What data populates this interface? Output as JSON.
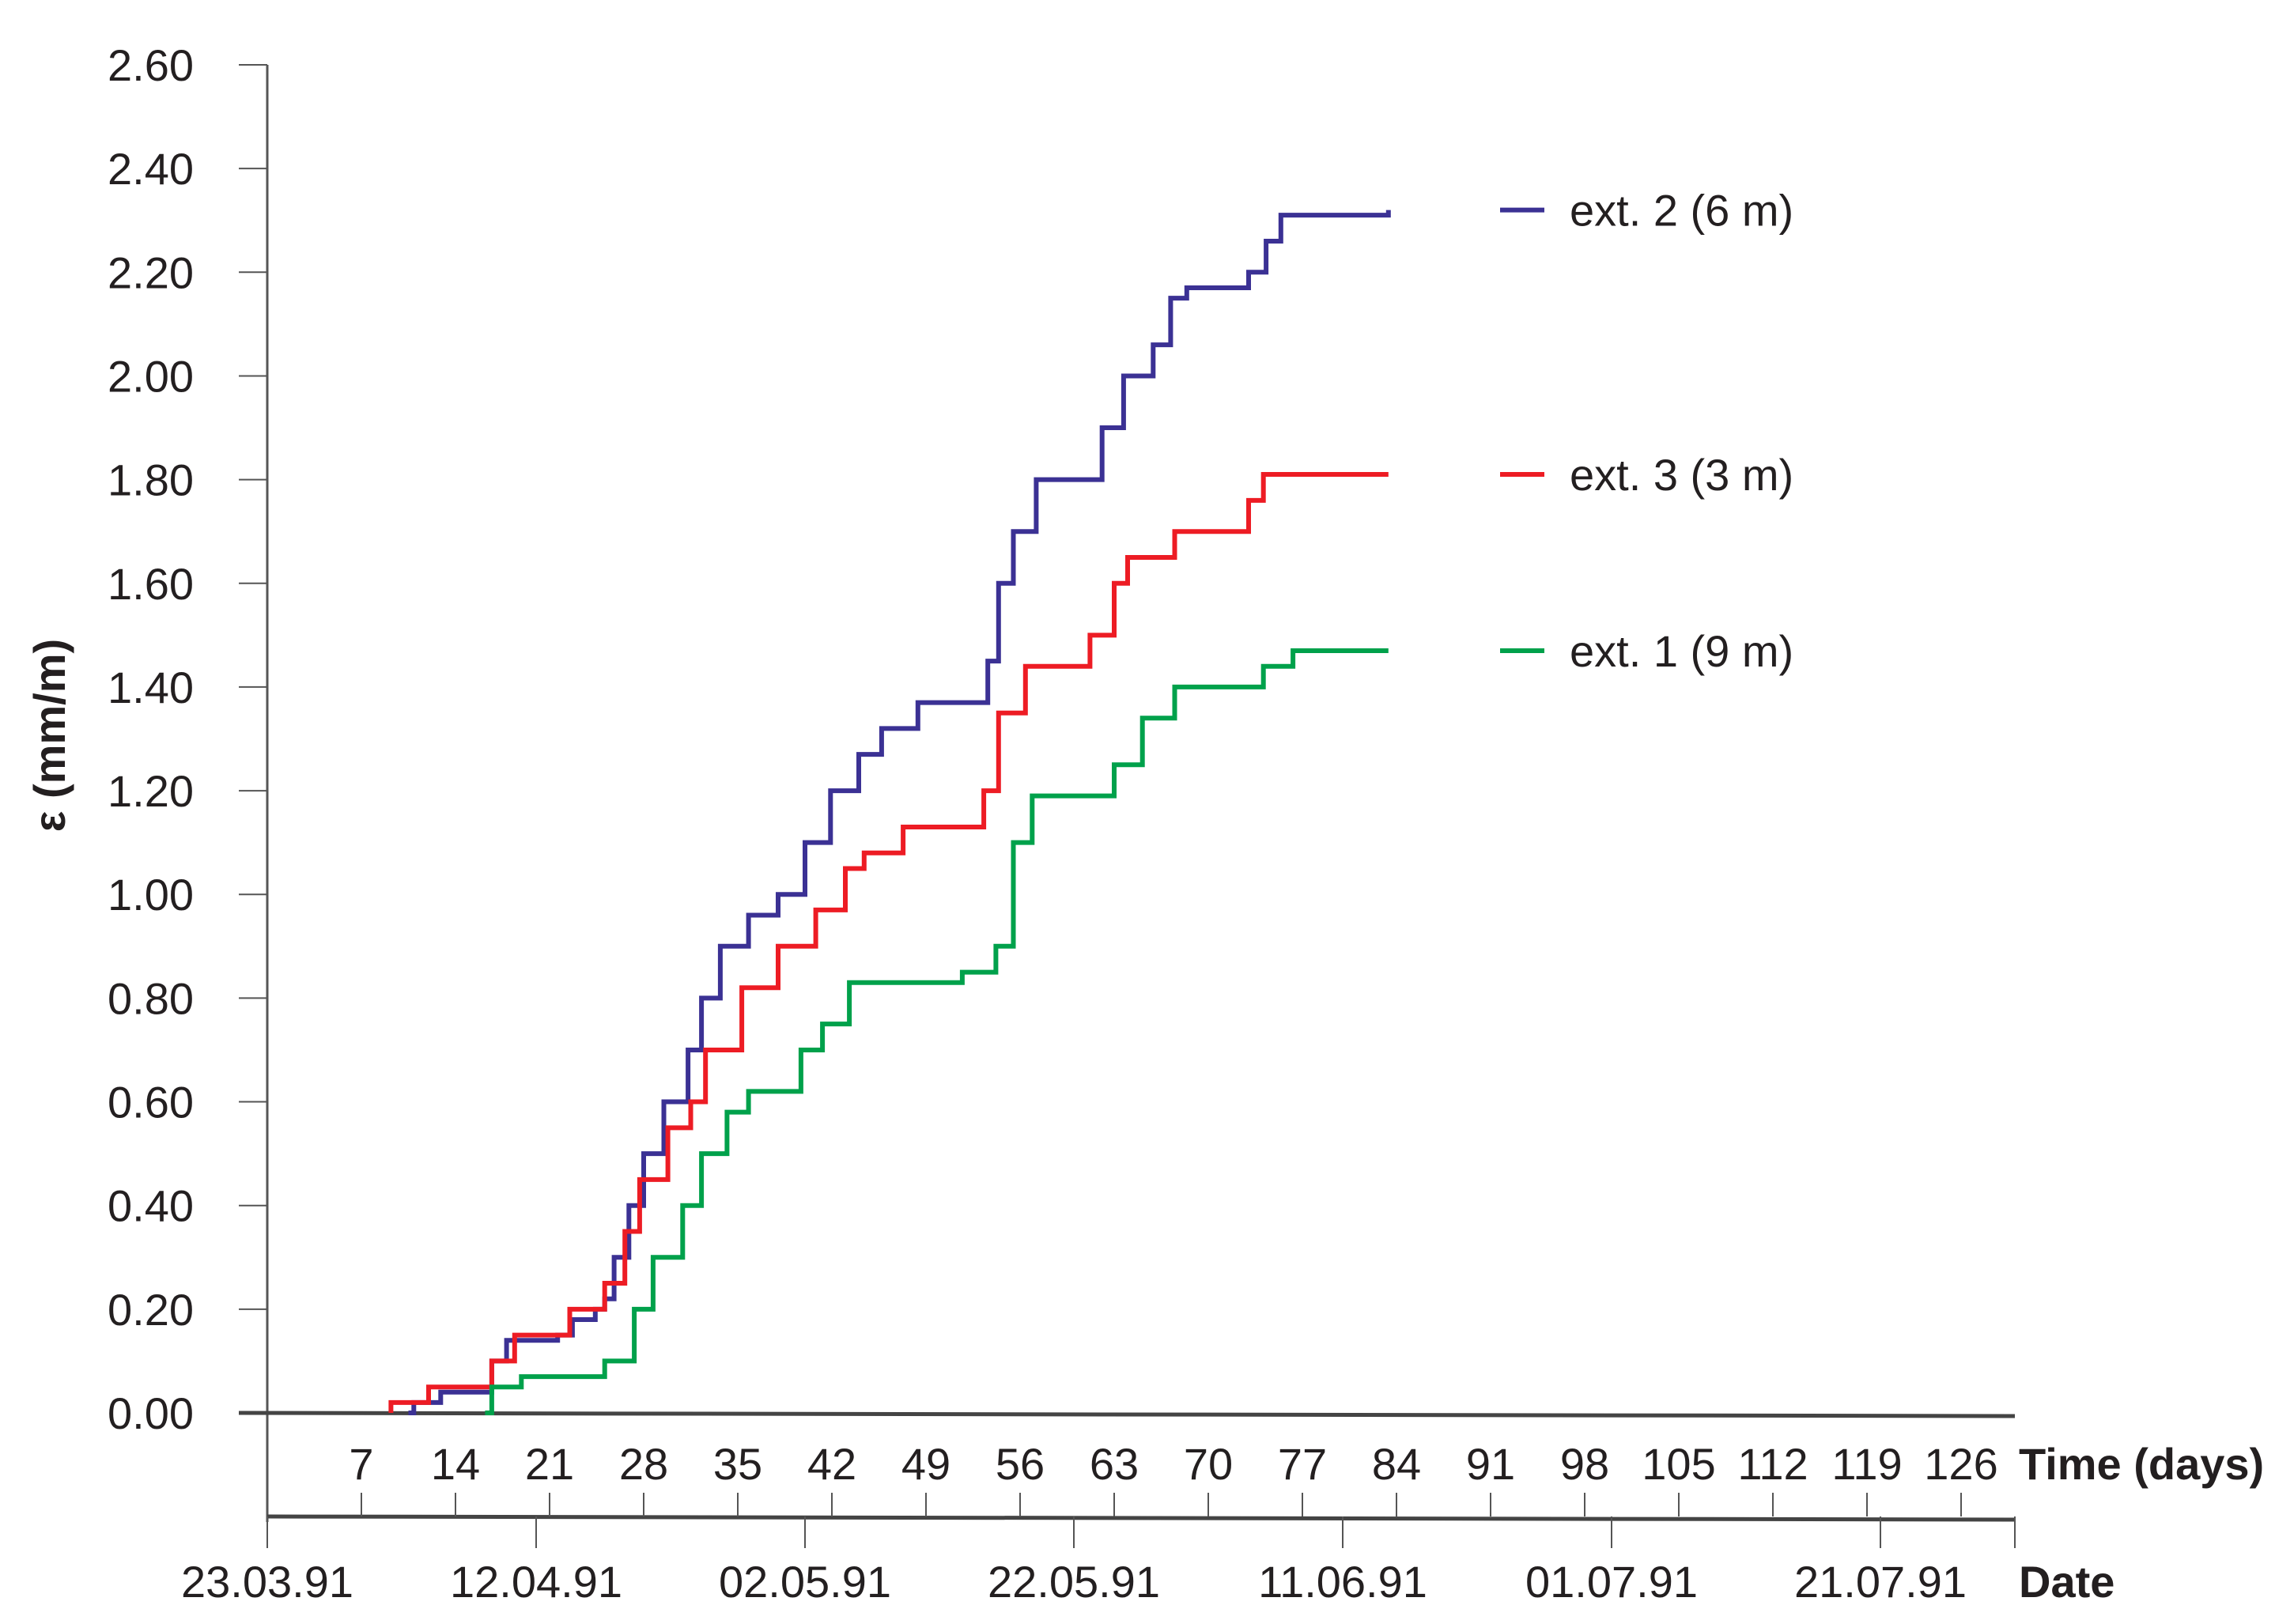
{
  "chart_data": {
    "type": "line",
    "step": true,
    "ylabel": "ε (mm/m)",
    "xlabel": "Time (days)",
    "x2label": "Date",
    "ylim": [
      0,
      2.6
    ],
    "xlim": [
      0,
      130
    ],
    "yticks": [
      "0.00",
      "0.20",
      "0.40",
      "0.60",
      "0.80",
      "1.00",
      "1.20",
      "1.40",
      "1.60",
      "1.80",
      "2.00",
      "2.20",
      "2.40",
      "2.60"
    ],
    "xticks": [
      7,
      14,
      21,
      28,
      35,
      42,
      49,
      56,
      63,
      70,
      77,
      84,
      91,
      98,
      105,
      112,
      119,
      126
    ],
    "date_ticks": [
      {
        "day": 0,
        "label": "23.03.91"
      },
      {
        "day": 20,
        "label": "12.04.91"
      },
      {
        "day": 40,
        "label": "02.05.91"
      },
      {
        "day": 60,
        "label": "22.05.91"
      },
      {
        "day": 80,
        "label": "11.06.91"
      },
      {
        "day": 100,
        "label": "01.07.91"
      },
      {
        "day": 120,
        "label": "21.07.91"
      },
      {
        "day": 130,
        "label": ""
      }
    ],
    "legend_position": "right",
    "grid": false,
    "series": [
      {
        "name": "ext. 2 (6 m)",
        "color": "#3b3194",
        "points": [
          [
            10.5,
            0
          ],
          [
            10.9,
            0.02
          ],
          [
            12.9,
            0.04
          ],
          [
            16.7,
            0.1
          ],
          [
            17.8,
            0.14
          ],
          [
            21.6,
            0.15
          ],
          [
            22.7,
            0.18
          ],
          [
            24.4,
            0.2
          ],
          [
            25.1,
            0.22
          ],
          [
            25.8,
            0.3
          ],
          [
            26.9,
            0.4
          ],
          [
            28.0,
            0.5
          ],
          [
            29.5,
            0.6
          ],
          [
            31.3,
            0.7
          ],
          [
            32.3,
            0.8
          ],
          [
            33.7,
            0.9
          ],
          [
            35.8,
            0.96
          ],
          [
            38.0,
            1.0
          ],
          [
            40.0,
            1.1
          ],
          [
            41.9,
            1.2
          ],
          [
            44.0,
            1.27
          ],
          [
            45.7,
            1.32
          ],
          [
            48.4,
            1.37
          ],
          [
            53.6,
            1.45
          ],
          [
            54.4,
            1.6
          ],
          [
            55.5,
            1.7
          ],
          [
            57.2,
            1.8
          ],
          [
            62.1,
            1.9
          ],
          [
            63.7,
            2.0
          ],
          [
            65.9,
            2.06
          ],
          [
            67.2,
            2.15
          ],
          [
            68.4,
            2.17
          ],
          [
            73.0,
            2.2
          ],
          [
            74.3,
            2.26
          ],
          [
            75.4,
            2.31
          ],
          [
            83.4,
            2.32
          ]
        ]
      },
      {
        "name": "ext. 3 (3 m)",
        "color": "#ed1c24",
        "points": [
          [
            9.2,
            0.02
          ],
          [
            12.0,
            0.05
          ],
          [
            16.7,
            0.1
          ],
          [
            18.4,
            0.15
          ],
          [
            22.5,
            0.2
          ],
          [
            25.1,
            0.25
          ],
          [
            26.6,
            0.35
          ],
          [
            27.7,
            0.45
          ],
          [
            29.8,
            0.55
          ],
          [
            31.5,
            0.6
          ],
          [
            32.6,
            0.7
          ],
          [
            35.3,
            0.82
          ],
          [
            38.0,
            0.9
          ],
          [
            40.8,
            0.97
          ],
          [
            43.0,
            1.05
          ],
          [
            44.4,
            1.08
          ],
          [
            47.3,
            1.13
          ],
          [
            53.3,
            1.2
          ],
          [
            54.4,
            1.35
          ],
          [
            56.4,
            1.44
          ],
          [
            61.2,
            1.5
          ],
          [
            63.0,
            1.6
          ],
          [
            64.0,
            1.65
          ],
          [
            67.5,
            1.7
          ],
          [
            73.0,
            1.76
          ],
          [
            74.1,
            1.81
          ],
          [
            83.4,
            1.81
          ]
        ]
      },
      {
        "name": "ext. 1 (9 m)",
        "color": "#00a14b",
        "points": [
          [
            16.2,
            0
          ],
          [
            16.7,
            0.05
          ],
          [
            18.9,
            0.07
          ],
          [
            25.1,
            0.1
          ],
          [
            27.3,
            0.2
          ],
          [
            28.7,
            0.3
          ],
          [
            30.9,
            0.4
          ],
          [
            32.3,
            0.5
          ],
          [
            34.2,
            0.58
          ],
          [
            35.8,
            0.62
          ],
          [
            39.7,
            0.7
          ],
          [
            41.3,
            0.75
          ],
          [
            43.3,
            0.83
          ],
          [
            51.7,
            0.85
          ],
          [
            54.2,
            0.9
          ],
          [
            55.5,
            1.1
          ],
          [
            56.9,
            1.19
          ],
          [
            63.0,
            1.25
          ],
          [
            65.1,
            1.34
          ],
          [
            67.5,
            1.4
          ],
          [
            74.1,
            1.44
          ],
          [
            76.3,
            1.47
          ],
          [
            83.4,
            1.47
          ]
        ]
      }
    ]
  }
}
